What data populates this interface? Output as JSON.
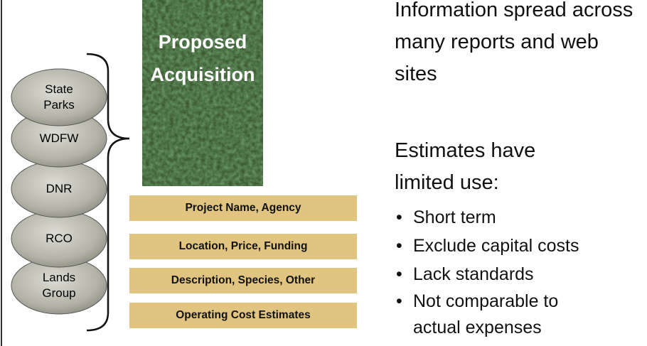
{
  "sources": [
    {
      "label": "State Parks"
    },
    {
      "label": "WDFW"
    },
    {
      "label": "DNR"
    },
    {
      "label": "RCO"
    },
    {
      "label": "Lands Group"
    }
  ],
  "acquisition": {
    "title": "Proposed Acquisition"
  },
  "fields": [
    "Project Name, Agency",
    "Location, Price, Funding",
    "Description, Species, Other",
    "Operating Cost Estimates"
  ],
  "notes": {
    "info": "Information spread across many reports and web sites",
    "estimates": "Estimates have limited use:",
    "bullets": [
      "Short term",
      "Exclude capital costs",
      "Lack standards",
      "Not comparable to actual expenses"
    ]
  }
}
